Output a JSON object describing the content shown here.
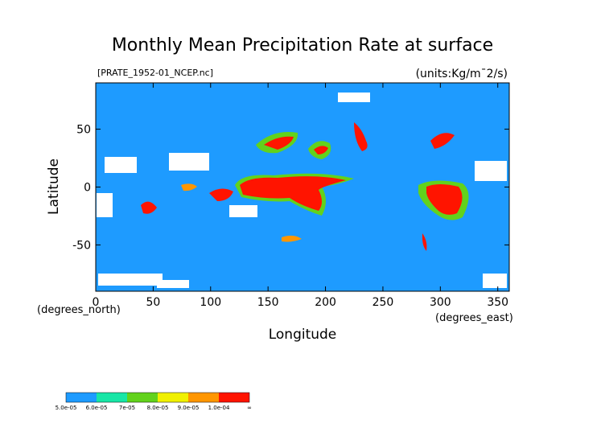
{
  "chart_data": {
    "type": "map",
    "title": "Monthly Mean Precipitation Rate at surface",
    "file_label": "[PRATE_1952-01_NCEP.nc]",
    "units_label": "(units:Kg/m¯2/s)",
    "xlabel": "Longitude",
    "ylabel": "Latitude",
    "x_unit_label": "(degrees_east)",
    "y_unit_label": "(degrees_north)",
    "xlim": [
      0,
      360
    ],
    "ylim": [
      -90,
      90
    ],
    "xticks": [
      0,
      50,
      100,
      150,
      200,
      250,
      300,
      350
    ],
    "yticks": [
      -50,
      0,
      50
    ],
    "colorbar": {
      "labels": [
        "5.0e-05",
        "6.0e-05",
        "7e-05",
        "8.0e-05",
        "9.0e-05",
        "1.0e-04",
        "∞"
      ],
      "colors": [
        "#1e9bff",
        "#18e6a6",
        "#62d21c",
        "#f0f000",
        "#ff9600",
        "#ff1400"
      ]
    }
  }
}
